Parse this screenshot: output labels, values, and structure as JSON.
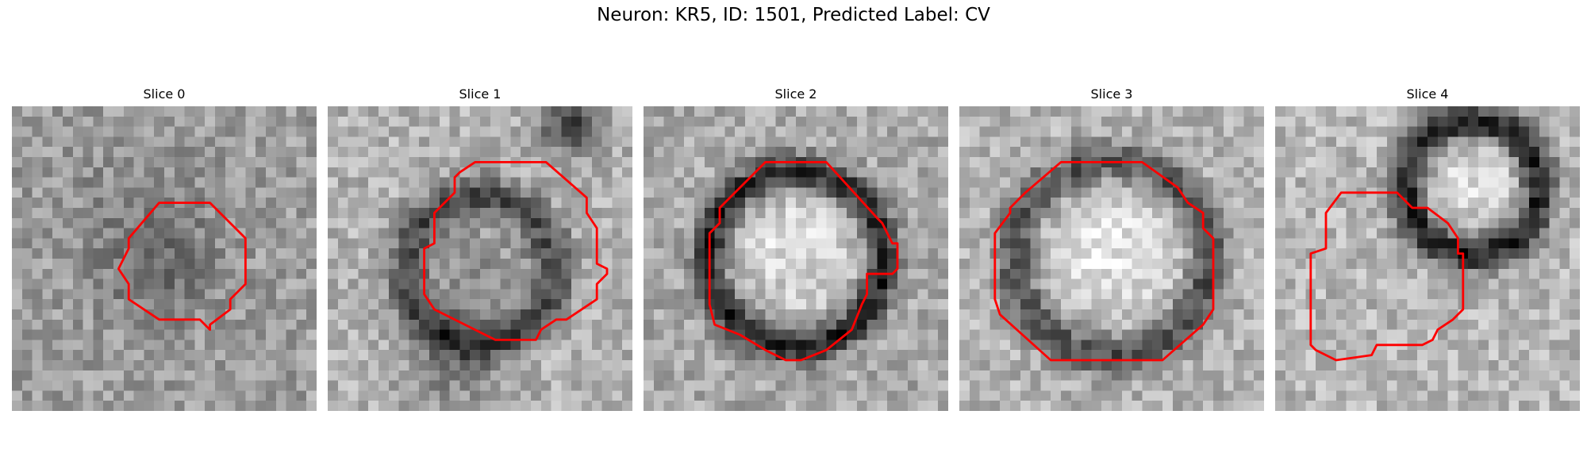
{
  "figure": {
    "title": "Neuron: KR5, ID: 1501, Predicted Label: CV"
  },
  "colors": {
    "contour": "#ff0000",
    "colormap": "grayscale"
  },
  "slices": [
    {
      "title": "Slice 0",
      "pattern": "faint-dark-blob-center"
    },
    {
      "title": "Slice 1",
      "pattern": "dark-ring-center-bottom"
    },
    {
      "title": "Slice 2",
      "pattern": "dark-ring-bright-center"
    },
    {
      "title": "Slice 3",
      "pattern": "dark-ring-bright-center"
    },
    {
      "title": "Slice 4",
      "pattern": "dark-ring-upper-right"
    }
  ]
}
